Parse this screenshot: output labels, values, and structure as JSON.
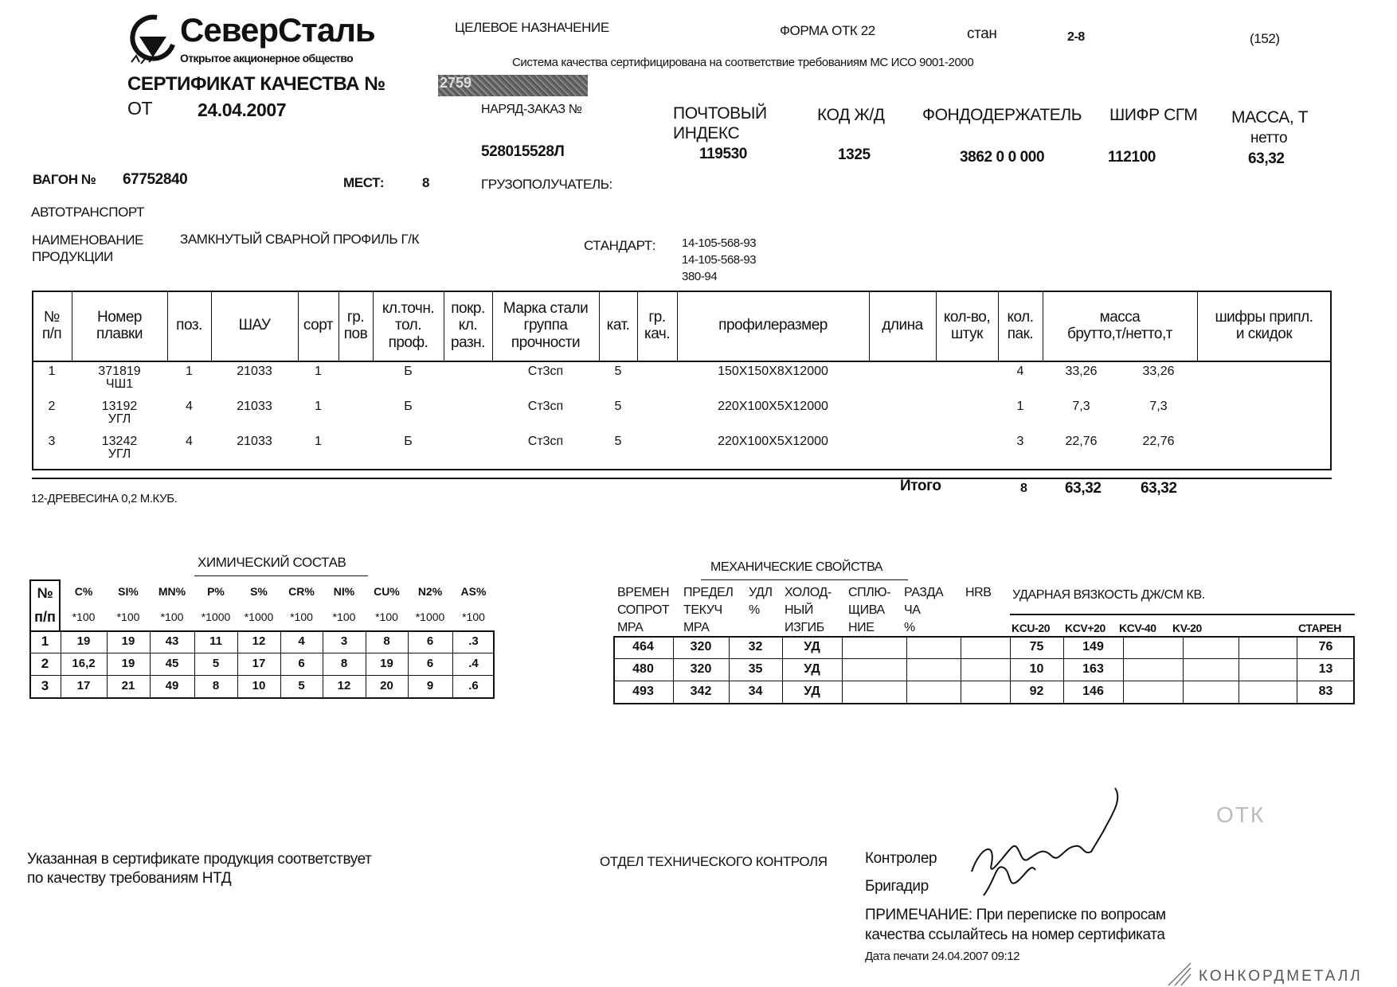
{
  "header": {
    "logo_name": "СеверСталь",
    "logo_subtitle": "Открытое акционерное общество",
    "cert_title": "СЕРТИФИКАТ КАЧЕСТВА №",
    "cert_number_visible": "2759",
    "from_label": "ОТ",
    "date": "24.04.2007",
    "purpose_label": "ЦЕЛЕВОЕ НАЗНАЧЕНИЕ",
    "form_label": "ФОРМА ОТК 22",
    "mill_label": "стан",
    "mill_value": "2-8",
    "code_paren": "(152)",
    "quality_system": "Система качества сертифицирована на соответствие требованиям МС ИСО 9001-2000",
    "order_label": "НАРЯД-ЗАКАЗ №",
    "order_value": "528015528Л",
    "postal_label_1": "ПОЧТОВЫЙ",
    "postal_label_2": "ИНДЕКС",
    "postal_value": "119530",
    "rail_code_label": "КОД Ж/Д",
    "rail_code_value": "1325",
    "fund_holder_label": "ФОНДОДЕРЖАТЕЛЬ",
    "fund_holder_value": "3862 0 0 000",
    "sgm_label": "ШИФР СГМ",
    "sgm_value": "112100",
    "mass_label": "МАССА, Т",
    "mass_sub": "нетто",
    "mass_value": "63,32",
    "wagon_label": "ВАГОН №",
    "wagon_value": "67752840",
    "places_label": "МЕСТ:",
    "places_value": "8",
    "consignee_label": "ГРУЗОПОЛУЧАТЕЛЬ:",
    "transport_label": "АВТОТРАНСПОРТ",
    "product_label_1": "НАИМЕНОВАНИЕ",
    "product_label_2": "ПРОДУКЦИИ",
    "product_value": "ЗАМКНУТЫЙ СВАРНОЙ ПРОФИЛЬ Г/К",
    "standard_label": "СТАНДАРТ:",
    "standards": [
      "14-105-568-93",
      "14-105-568-93",
      "380-94"
    ]
  },
  "main_table": {
    "headers": [
      "№\nп/п",
      "Номер\nплавки",
      "поз.",
      "ШАУ",
      "сорт",
      "гр.\nпов",
      "кл.точн.\nтол.\nпроф.",
      "покр.\nкл.\nразн.",
      "Марка стали\nгруппа\nпрочности",
      "кат.",
      "гр.\nкач.",
      "профилеразмер",
      "длина",
      "кол-во,\nштук",
      "кол.\nпак.",
      "масса\nбрутто,т/нетто,т",
      "шифры припл.\nи скидок"
    ],
    "rows": [
      {
        "n": "1",
        "heat": "371819\nЧШ1",
        "pos": "1",
        "shau": "21033",
        "sort": "1",
        "grpov": "",
        "tol": "Б",
        "pokr": "",
        "steel": "Ст3сп",
        "kat": "5",
        "grkach": "",
        "size": "150X150X8X12000",
        "len": "",
        "qty": "",
        "pack": "4",
        "gross": "33,26",
        "net": "33,26",
        "codes": ""
      },
      {
        "n": "2",
        "heat": "13192\nУГЛ",
        "pos": "4",
        "shau": "21033",
        "sort": "1",
        "grpov": "",
        "tol": "Б",
        "pokr": "",
        "steel": "Ст3сп",
        "kat": "5",
        "grkach": "",
        "size": "220X100X5X12000",
        "len": "",
        "qty": "",
        "pack": "1",
        "gross": "7,3",
        "net": "7,3",
        "codes": ""
      },
      {
        "n": "3",
        "heat": "13242\nУГЛ",
        "pos": "4",
        "shau": "21033",
        "sort": "1",
        "grpov": "",
        "tol": "Б",
        "pokr": "",
        "steel": "Ст3сп",
        "kat": "5",
        "grkach": "",
        "size": "220X100X5X12000",
        "len": "",
        "qty": "",
        "pack": "3",
        "gross": "22,76",
        "net": "22,76",
        "codes": ""
      }
    ],
    "total_label": "Итого",
    "total_packs": "8",
    "total_gross": "63,32",
    "total_net": "63,32",
    "note": "12-ДРЕВЕСИНА 0,2 М.КУБ."
  },
  "chemistry": {
    "title": "ХИМИЧЕСКИЙ СОСТАВ",
    "first_header": "№\nп/п",
    "elements": [
      "C%",
      "SI%",
      "MN%",
      "P%",
      "S%",
      "CR%",
      "NI%",
      "CU%",
      "N2%",
      "AS%"
    ],
    "multipliers": [
      "*100",
      "*100",
      "*100",
      "*1000",
      "*1000",
      "*100",
      "*100",
      "*100",
      "*1000",
      "*100"
    ],
    "rows": [
      {
        "n": "1",
        "values": [
          "19",
          "19",
          "43",
          "11",
          "12",
          "4",
          "3",
          "8",
          "6",
          ".3"
        ]
      },
      {
        "n": "2",
        "values": [
          "16,2",
          "19",
          "45",
          "5",
          "17",
          "6",
          "8",
          "19",
          "6",
          ".4"
        ]
      },
      {
        "n": "3",
        "values": [
          "17",
          "21",
          "49",
          "8",
          "10",
          "5",
          "12",
          "20",
          "9",
          ".6"
        ]
      }
    ]
  },
  "mechanics": {
    "title": "МЕХАНИЧЕСКИЕ СВОЙСТВА",
    "headers": [
      "ВРЕМЕН\nСОПРОТ\nМРА",
      "ПРЕДЕЛ\nТЕКУЧ\nМРА",
      "УДЛ\n%",
      "ХОЛОД-\nНЫЙ\nИЗГИБ",
      "СПЛЮ-\nЩИВА\nНИЕ",
      "РАЗДА\nЧА\n%",
      "HRB"
    ],
    "impact_title": "УДАРНАЯ ВЯЗКОСТЬ ДЖ/СМ КВ.",
    "impact_headers": [
      "KCU-20",
      "KCV+20",
      "KCV-40",
      "KV-20",
      "",
      "СТАРЕН"
    ],
    "rows": [
      [
        "464",
        "320",
        "32",
        "УД",
        "",
        "",
        "",
        "75",
        "149",
        "",
        "",
        "",
        "76"
      ],
      [
        "480",
        "320",
        "35",
        "УД",
        "",
        "",
        "",
        "10",
        "163",
        "",
        "",
        "",
        "13"
      ],
      [
        "493",
        "342",
        "34",
        "УД",
        "",
        "",
        "",
        "92",
        "146",
        "",
        "",
        "",
        "83"
      ]
    ]
  },
  "footer": {
    "conformity_1": "Указанная в сертификате продукция соответствует",
    "conformity_2": "по качеству требованиям НТД",
    "department": "ОТДЕЛ ТЕХНИЧЕСКОГО КОНТРОЛЯ",
    "controller_label": "Контролер",
    "foreman_label": "Бригадир",
    "note_1": "ПРИМЕЧАНИЕ: При переписке по вопросам",
    "note_2": "качества ссылайтесь на номер сертификата",
    "print_date": "Дата печати 24.04.2007 09:12",
    "watermark": "КОНКОРДМЕТАЛЛ",
    "stamp_text": "ОТК"
  }
}
